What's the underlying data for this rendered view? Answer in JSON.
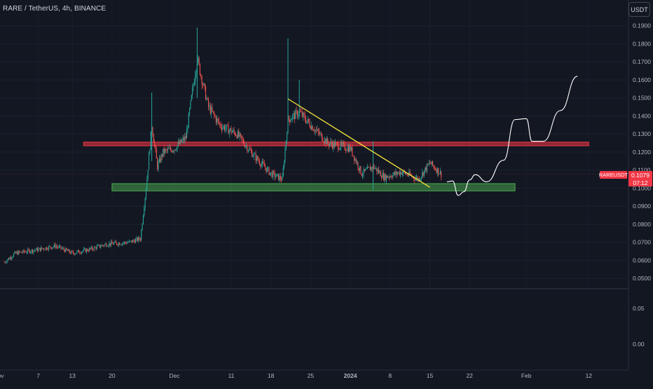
{
  "header": {
    "title": "RARE / TetherUS, 4h, BINANCE",
    "currency_label": "USDT"
  },
  "last_price": {
    "symbol": "RAREUSDT",
    "price": "0.1079",
    "countdown": "07:12",
    "value": 0.1079
  },
  "colors": {
    "background": "#131722",
    "bull": "#26a69a",
    "bear": "#ef5350",
    "resistance": "#f23645",
    "support": "#4caf50",
    "trendline": "#f5e53b",
    "projection": "#ffffff",
    "axis_text": "#b2b5be",
    "separator": "#363a45"
  },
  "chart_data": [
    {
      "type": "candlestick",
      "symbol": "RARE / TetherUS",
      "interval": "4h",
      "exchange": "BINANCE",
      "xlabel": "",
      "ylabel": "",
      "x_ticks": [
        "Nov",
        "7",
        "13",
        "20",
        "Dec",
        "11",
        "18",
        "25",
        "2024",
        "8",
        "15",
        "22",
        "Feb",
        "12"
      ],
      "y_ticks": [
        "0.1900",
        "0.1800",
        "0.1700",
        "0.1600",
        "0.1500",
        "0.1400",
        "0.1300",
        "0.1200",
        "0.1100",
        "0.1000",
        "0.0900",
        "0.0800",
        "0.0700",
        "0.0600",
        "0.0500"
      ],
      "ylim": [
        0.045,
        0.197
      ],
      "x_range_days": [
        "2023-11-01",
        "2024-02-12"
      ],
      "price_anchors": [
        {
          "date": "2023-11-01",
          "close": 0.059
        },
        {
          "date": "2023-11-03",
          "close": 0.064
        },
        {
          "date": "2023-11-07",
          "close": 0.066
        },
        {
          "date": "2023-11-10",
          "close": 0.068
        },
        {
          "date": "2023-11-13",
          "close": 0.064
        },
        {
          "date": "2023-11-16",
          "close": 0.066
        },
        {
          "date": "2023-11-19",
          "close": 0.069
        },
        {
          "date": "2023-11-23",
          "close": 0.07
        },
        {
          "date": "2023-11-25",
          "close": 0.072
        },
        {
          "date": "2023-11-26",
          "close": 0.1
        },
        {
          "date": "2023-11-27",
          "close": 0.135
        },
        {
          "date": "2023-11-28",
          "close": 0.112
        },
        {
          "date": "2023-11-29",
          "close": 0.12
        },
        {
          "date": "2023-12-01",
          "close": 0.122
        },
        {
          "date": "2023-12-03",
          "close": 0.128
        },
        {
          "date": "2023-12-05",
          "close": 0.172
        },
        {
          "date": "2023-12-06",
          "close": 0.158
        },
        {
          "date": "2023-12-07",
          "close": 0.145
        },
        {
          "date": "2023-12-09",
          "close": 0.135
        },
        {
          "date": "2023-12-12",
          "close": 0.13
        },
        {
          "date": "2023-12-15",
          "close": 0.118
        },
        {
          "date": "2023-12-18",
          "close": 0.108
        },
        {
          "date": "2023-12-20",
          "close": 0.105
        },
        {
          "date": "2023-12-21",
          "close": 0.138
        },
        {
          "date": "2023-12-23",
          "close": 0.142
        },
        {
          "date": "2023-12-25",
          "close": 0.135
        },
        {
          "date": "2023-12-28",
          "close": 0.125
        },
        {
          "date": "2024-01-01",
          "close": 0.122
        },
        {
          "date": "2024-01-03",
          "close": 0.108
        },
        {
          "date": "2024-01-05",
          "close": 0.112
        },
        {
          "date": "2024-01-07",
          "close": 0.106
        },
        {
          "date": "2024-01-10",
          "close": 0.109
        },
        {
          "date": "2024-01-13",
          "close": 0.105
        },
        {
          "date": "2024-01-15",
          "close": 0.114
        },
        {
          "date": "2024-01-17",
          "close": 0.1079
        }
      ],
      "annotations": [
        {
          "type": "zone",
          "label": "resistance",
          "price_low": 0.1235,
          "price_high": 0.1255,
          "from": "2023-11-15",
          "to": "2024-02-12"
        },
        {
          "type": "zone",
          "label": "support",
          "price_low": 0.0985,
          "price_high": 0.1025,
          "from": "2023-11-20",
          "to": "2024-01-30"
        },
        {
          "type": "trendline",
          "from": {
            "date": "2023-12-21",
            "price": 0.1495
          },
          "to": {
            "date": "2024-01-15",
            "price": 0.1005
          }
        },
        {
          "type": "projection",
          "points": [
            {
              "date": "2024-01-18",
              "price": 0.1035
            },
            {
              "date": "2024-01-19",
              "price": 0.104
            },
            {
              "date": "2024-01-20",
              "price": 0.096
            },
            {
              "date": "2024-01-21",
              "price": 0.098
            },
            {
              "date": "2024-01-22",
              "price": 0.1045
            },
            {
              "date": "2024-01-23",
              "price": 0.1075
            },
            {
              "date": "2024-01-25",
              "price": 0.1035
            },
            {
              "date": "2024-01-28",
              "price": 0.1155
            },
            {
              "date": "2024-01-30",
              "price": 0.138
            },
            {
              "date": "2024-02-01",
              "price": 0.1385
            },
            {
              "date": "2024-02-02",
              "price": 0.126
            },
            {
              "date": "2024-02-04",
              "price": 0.126
            },
            {
              "date": "2024-02-07",
              "price": 0.143
            },
            {
              "date": "2024-02-10",
              "price": 0.162
            }
          ]
        }
      ]
    },
    {
      "type": "line",
      "role": "indicator-pane",
      "y_ticks": [
        "0.05",
        "0.00"
      ],
      "ylim": [
        -0.02,
        0.08
      ],
      "series": []
    }
  ]
}
